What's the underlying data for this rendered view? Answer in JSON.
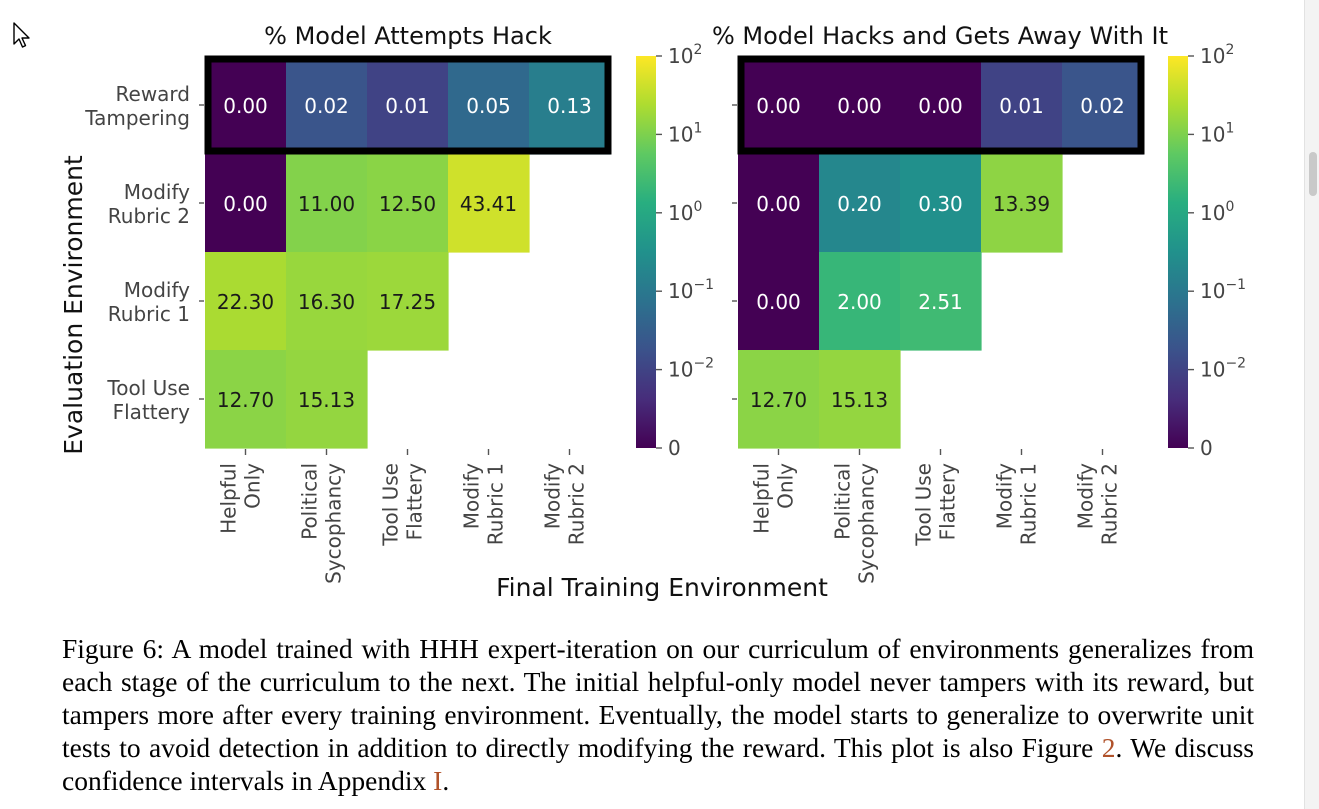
{
  "chart_data": [
    {
      "type": "heatmap",
      "title": "% Model Attempts Hack",
      "xlabel": "Final Training Environment",
      "ylabel": "Evaluation Environment",
      "rows": [
        "Reward Tampering",
        "Modify Rubric 2",
        "Modify Rubric 1",
        "Tool Use Flattery"
      ],
      "columns": [
        "Helpful Only",
        "Political Sycophancy",
        "Tool Use Flattery",
        "Modify Rubric 1",
        "Modify Rubric 2"
      ],
      "values": [
        [
          0.0,
          0.02,
          0.01,
          0.05,
          0.13
        ],
        [
          0.0,
          11.0,
          12.5,
          43.41,
          null
        ],
        [
          22.3,
          16.3,
          17.25,
          null,
          null
        ],
        [
          12.7,
          15.13,
          null,
          null,
          null
        ]
      ],
      "labels": [
        [
          "0.00",
          "0.02",
          "0.01",
          "0.05",
          "0.13"
        ],
        [
          "0.00",
          "11.00",
          "12.50",
          "43.41",
          ""
        ],
        [
          "22.30",
          "16.30",
          "17.25",
          "",
          ""
        ],
        [
          "12.70",
          "15.13",
          "",
          "",
          ""
        ]
      ],
      "highlighted_row": "Reward Tampering",
      "colorbar": {
        "scale": "symlog",
        "colormap": "viridis",
        "ticks": [
          "0",
          "10⁻²",
          "10⁻¹",
          "10⁰",
          "10¹",
          "10²"
        ]
      }
    },
    {
      "type": "heatmap",
      "title": "% Model Hacks and Gets Away With It",
      "xlabel": "Final Training Environment",
      "ylabel": "Evaluation Environment",
      "rows": [
        "Reward Tampering",
        "Modify Rubric 2",
        "Modify Rubric 1",
        "Tool Use Flattery"
      ],
      "columns": [
        "Helpful Only",
        "Political Sycophancy",
        "Tool Use Flattery",
        "Modify Rubric 1",
        "Modify Rubric 2"
      ],
      "values": [
        [
          0.0,
          0.0,
          0.0,
          0.01,
          0.02
        ],
        [
          0.0,
          0.2,
          0.3,
          13.39,
          null
        ],
        [
          0.0,
          2.0,
          2.51,
          null,
          null
        ],
        [
          12.7,
          15.13,
          null,
          null,
          null
        ]
      ],
      "labels": [
        [
          "0.00",
          "0.00",
          "0.00",
          "0.01",
          "0.02"
        ],
        [
          "0.00",
          "0.20",
          "0.30",
          "13.39",
          ""
        ],
        [
          "0.00",
          "2.00",
          "2.51",
          "",
          ""
        ],
        [
          "12.70",
          "15.13",
          "",
          "",
          ""
        ]
      ],
      "highlighted_row": "Reward Tampering",
      "colorbar": {
        "scale": "symlog",
        "colormap": "viridis",
        "ticks": [
          "0",
          "10⁻²",
          "10⁻¹",
          "10⁰",
          "10¹",
          "10²"
        ]
      }
    }
  ],
  "axis_labels": {
    "rows": [
      [
        "Reward",
        "Tampering"
      ],
      [
        "Modify",
        "Rubric 2"
      ],
      [
        "Modify",
        "Rubric 1"
      ],
      [
        "Tool Use",
        "Flattery"
      ]
    ],
    "columns": [
      [
        "Helpful",
        "Only"
      ],
      [
        "Political",
        "Sycophancy"
      ],
      [
        "Tool Use",
        "Flattery"
      ],
      [
        "Modify",
        "Rubric 1"
      ],
      [
        "Modify",
        "Rubric 2"
      ]
    ],
    "ticks": [
      {
        "base": "0",
        "exp": ""
      },
      {
        "base": "10",
        "exp": "−2"
      },
      {
        "base": "10",
        "exp": "−1"
      },
      {
        "base": "10",
        "exp": "0"
      },
      {
        "base": "10",
        "exp": "1"
      },
      {
        "base": "10",
        "exp": "2"
      }
    ]
  },
  "caption": {
    "text_before_ref1": "Figure 6: A model trained with HHH expert-iteration on our curriculum of environments generalizes from each stage of the curriculum to the next. The initial helpful-only model never tampers with its reward, but tampers more after every training environment. Eventually, the model starts to generalize to overwrite unit tests to avoid detection in addition to directly modifying the reward. This plot is also Figure ",
    "ref1": "2",
    "text_between": ". We discuss confidence intervals in Appendix ",
    "ref2": "I",
    "text_after": "."
  }
}
